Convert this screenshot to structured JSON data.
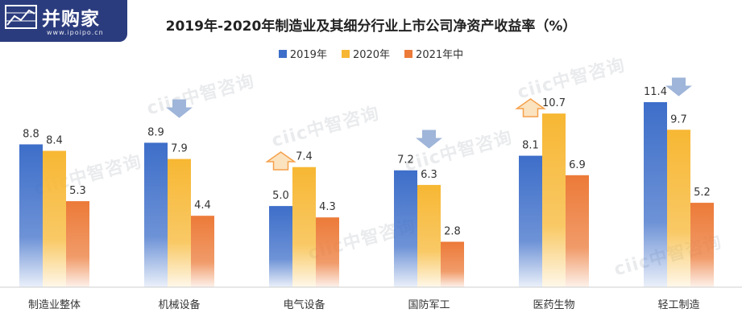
{
  "logo": {
    "text": "并购家",
    "url": "www.ipoipo.cn"
  },
  "watermark_text": "ciic中智咨询",
  "chart_data": {
    "type": "bar",
    "title": "2019年-2020年制造业及其细分行业上市公司净资产收益率（%）",
    "categories": [
      "制造业整体",
      "机械设备",
      "电气设备",
      "国防军工",
      "医药生物",
      "轻工制造"
    ],
    "series": [
      {
        "name": "2019年",
        "values": [
          8.8,
          8.9,
          5.0,
          7.2,
          8.1,
          11.4
        ],
        "color": "#3d6ec9"
      },
      {
        "name": "2020年",
        "values": [
          8.4,
          7.9,
          7.4,
          6.3,
          10.7,
          9.7
        ],
        "color": "#f7b733"
      },
      {
        "name": "2021年中",
        "values": [
          5.3,
          4.4,
          4.3,
          2.8,
          6.9,
          5.2
        ],
        "color": "#ec7a38"
      }
    ],
    "value_labels": [
      [
        "8.8",
        "8.9",
        "5.0",
        "7.2",
        "8.1",
        "11.4"
      ],
      [
        "8.4",
        "7.9",
        "7.4",
        "6.3",
        "10.7",
        "9.7"
      ],
      [
        "5.3",
        "4.4",
        "4.3",
        "2.8",
        "6.9",
        "5.2"
      ]
    ],
    "trend_arrows": [
      "none",
      "down",
      "up",
      "down",
      "up",
      "down"
    ],
    "ylim": [
      0,
      12
    ],
    "grid": false,
    "legend_position": "top-center",
    "xlabel": "",
    "ylabel": ""
  }
}
